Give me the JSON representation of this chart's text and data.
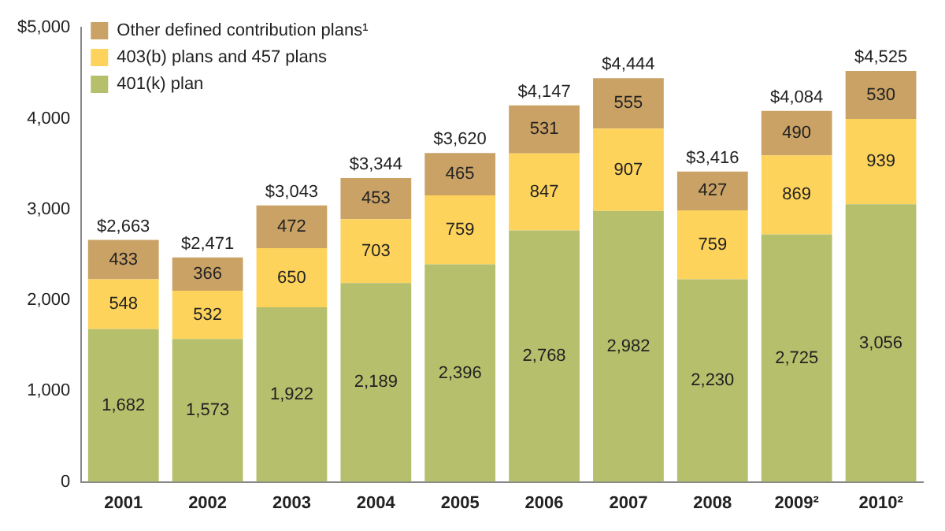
{
  "chart_data": {
    "type": "bar",
    "stacked": true,
    "categories": [
      "2001",
      "2002",
      "2003",
      "2004",
      "2005",
      "2006",
      "2007",
      "2008",
      "2009²",
      "2010²"
    ],
    "series": [
      {
        "name": "401(k) plan",
        "color": "#b6bf6b",
        "values": [
          1682,
          1573,
          1922,
          2189,
          2396,
          2768,
          2982,
          2230,
          2725,
          3056
        ],
        "value_labels": [
          "1,682",
          "1,573",
          "1,922",
          "2,189",
          "2,396",
          "2,768",
          "2,982",
          "2,230",
          "2,725",
          "3,056"
        ]
      },
      {
        "name": "403(b) plans and 457 plans",
        "color": "#fed35b",
        "values": [
          548,
          532,
          650,
          703,
          759,
          847,
          907,
          759,
          869,
          939
        ],
        "value_labels": [
          "548",
          "532",
          "650",
          "703",
          "759",
          "847",
          "907",
          "759",
          "869",
          "939"
        ]
      },
      {
        "name": "Other defined contribution plans¹",
        "color": "#caa265",
        "values": [
          433,
          366,
          472,
          453,
          465,
          531,
          555,
          427,
          490,
          530
        ],
        "value_labels": [
          "433",
          "366",
          "472",
          "453",
          "465",
          "531",
          "555",
          "427",
          "490",
          "530"
        ]
      }
    ],
    "totals": [
      "$2,663",
      "$2,471",
      "$3,043",
      "$3,344",
      "$3,620",
      "$4,147",
      "$4,444",
      "$3,416",
      "$4,084",
      "$4,525"
    ],
    "ylim": [
      0,
      5000
    ],
    "yticks": [
      0,
      {
        "value": 1000,
        "label": "1,000"
      },
      {
        "value": 2000,
        "label": "2,000"
      },
      {
        "value": 3000,
        "label": "3,000"
      },
      {
        "value": 4000,
        "label": "4,000"
      },
      {
        "value": 5000,
        "label": "$5,000"
      }
    ],
    "grid": false,
    "legend": "top left"
  }
}
